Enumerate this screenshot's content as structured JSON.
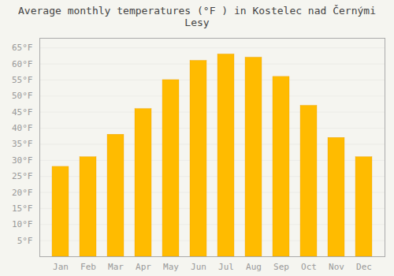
{
  "chart_data": {
    "type": "bar",
    "title": "Average monthly temperatures (°F ) in Kostelec nad Černými Lesy",
    "categories": [
      "Jan",
      "Feb",
      "Mar",
      "Apr",
      "May",
      "Jun",
      "Jul",
      "Aug",
      "Sep",
      "Oct",
      "Nov",
      "Dec"
    ],
    "values": [
      28,
      31,
      38,
      46,
      55,
      61,
      63,
      62,
      56,
      47,
      37,
      31
    ],
    "color": "#FFBB00",
    "ylim": [
      0,
      68
    ],
    "yticks": [
      {
        "value": 5,
        "label": "5°F"
      },
      {
        "value": 10,
        "label": "10°F"
      },
      {
        "value": 15,
        "label": "15°F"
      },
      {
        "value": 20,
        "label": "20°F"
      },
      {
        "value": 25,
        "label": "25°F"
      },
      {
        "value": 30,
        "label": "30°F"
      },
      {
        "value": 35,
        "label": "35°F"
      },
      {
        "value": 40,
        "label": "40°F"
      },
      {
        "value": 45,
        "label": "45°F"
      },
      {
        "value": 50,
        "label": "50°F"
      },
      {
        "value": 55,
        "label": "55°F"
      },
      {
        "value": 60,
        "label": "60°F"
      },
      {
        "value": 65,
        "label": "65°F"
      }
    ],
    "grid": true
  }
}
